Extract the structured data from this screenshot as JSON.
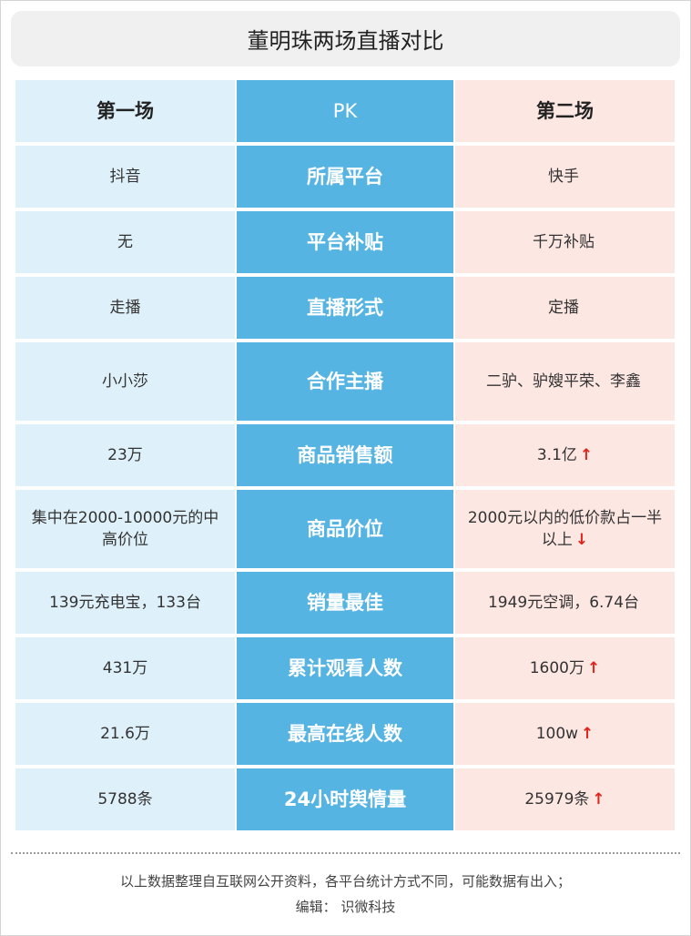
{
  "title": "董明珠两场直播对比",
  "header": {
    "left": "第一场",
    "mid": "PK",
    "right": "第二场"
  },
  "rows": [
    {
      "left": "抖音",
      "label": "所属平台",
      "right": "快手",
      "arrow": ""
    },
    {
      "left": "无",
      "label": "平台补贴",
      "right": "千万补贴",
      "arrow": ""
    },
    {
      "left": "走播",
      "label": "直播形式",
      "right": "定播",
      "arrow": ""
    },
    {
      "left": "小小莎",
      "label": "合作主播",
      "right": "二驴、驴嫂平荣、李鑫",
      "arrow": ""
    },
    {
      "left": "23万",
      "label": "商品销售额",
      "right": "3.1亿",
      "arrow": "↑"
    },
    {
      "left": "集中在2000-10000元的中高价位",
      "label": "商品价位",
      "right": "2000元以内的低价款占一半以上",
      "arrow": "↓"
    },
    {
      "left": "139元充电宝，133台",
      "label": "销量最佳",
      "right": "1949元空调，6.74台",
      "arrow": ""
    },
    {
      "left": "431万",
      "label": "累计观看人数",
      "right": "1600万",
      "arrow": "↑"
    },
    {
      "left": "21.6万",
      "label": "最高在线人数",
      "right": "100w",
      "arrow": "↑"
    },
    {
      "left": "5788条",
      "label": "24小时舆情量",
      "right": "25979条",
      "arrow": "↑"
    }
  ],
  "footer": {
    "note": "以上数据整理自互联网公开资料，各平台统计方式不同，可能数据有出入；",
    "editor": "编辑：  识微科技"
  },
  "colors": {
    "left_bg": "#def0f9",
    "mid_bg": "#56b4e2",
    "right_bg": "#fde7e3",
    "arrow": "#e2231a"
  }
}
